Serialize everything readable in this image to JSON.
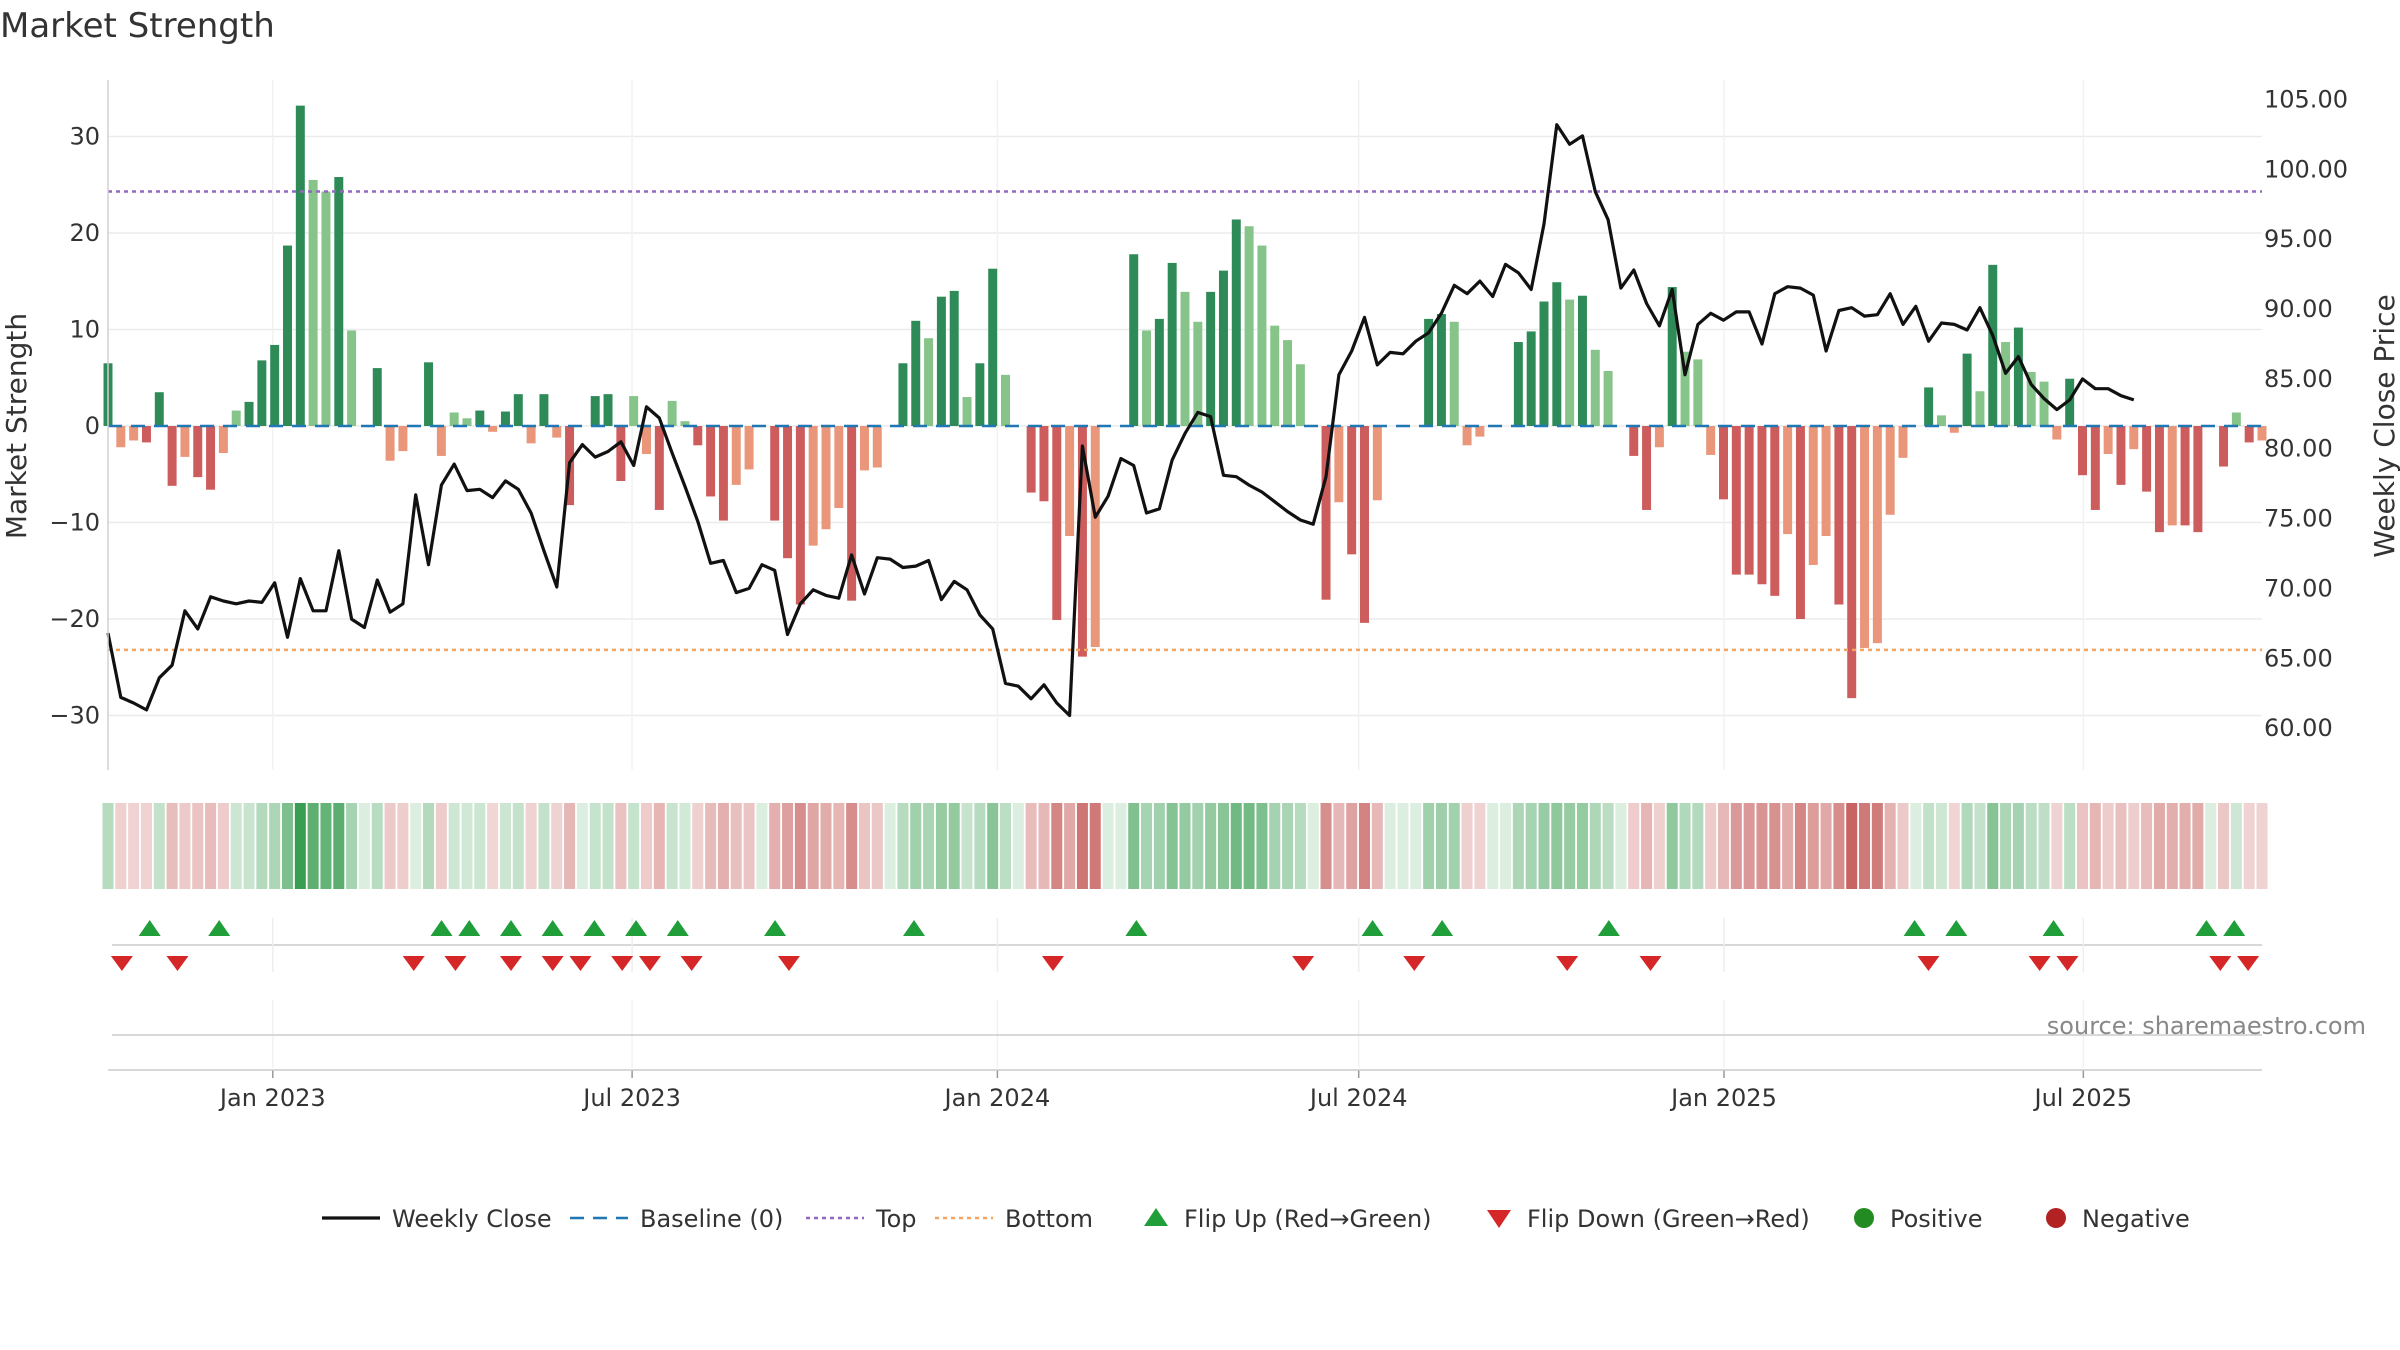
{
  "title": "Market Strength",
  "source": "source: sharemaestro.com",
  "colors": {
    "strong_green": "#2e8b57",
    "light_green": "#86c48a",
    "strong_red": "#cd5c5c",
    "light_red": "#e9967a",
    "baseline": "#1f77b4",
    "top": "#9467bd",
    "bottom": "#f4a460",
    "price": "#111111",
    "flip_up": "#1f9e3a",
    "flip_down": "#d62728",
    "positive": "#228b22",
    "negative": "#b22222"
  },
  "chart_data": {
    "type": "bar",
    "title": "Market Strength",
    "ylabel": "Market Strength",
    "y2label": "Weekly Close Price",
    "ylim": [
      -36,
      36
    ],
    "y2lim": [
      57,
      106.4
    ],
    "yticks": [
      -30,
      -20,
      -10,
      0,
      10,
      20,
      30
    ],
    "yticklabels": [
      "−30",
      "−20",
      "−10",
      "0",
      "10",
      "20",
      "30"
    ],
    "y2ticks": [
      60,
      65,
      70,
      75,
      80,
      85,
      90,
      95,
      100,
      105
    ],
    "y2ticklabels": [
      "60.00",
      "65.00",
      "70.00",
      "75.00",
      "80.00",
      "85.00",
      "90.00",
      "95.00",
      "100.00",
      "105.00"
    ],
    "top_level": 24.3,
    "bottom_level": -23.2,
    "x_start": "2022-10-10",
    "x_end": "2025-09-29",
    "xticks": [
      {
        "date": "2023-01-01",
        "label": "Jan 2023"
      },
      {
        "date": "2023-07-01",
        "label": "Jul 2023"
      },
      {
        "date": "2024-01-01",
        "label": "Jan 2024"
      },
      {
        "date": "2024-07-01",
        "label": "Jul 2024"
      },
      {
        "date": "2025-01-01",
        "label": "Jan 2025"
      },
      {
        "date": "2025-07-01",
        "label": "Jul 2025"
      }
    ],
    "strength": [
      6.5,
      -2.2,
      -1.5,
      -1.7,
      3.5,
      -6.2,
      -3.2,
      -5.3,
      -6.6,
      -2.8,
      1.6,
      2.5,
      6.8,
      8.4,
      18.7,
      33.2,
      25.5,
      24.3,
      25.8,
      9.9,
      0,
      6,
      -3.6,
      -2.6,
      0,
      6.6,
      -3.1,
      1.4,
      0.8,
      1.6,
      -0.6,
      1.5,
      3.3,
      -1.8,
      3.3,
      -1.2,
      -8.2,
      0,
      3.1,
      3.3,
      -5.7,
      3.1,
      -2.9,
      -8.7,
      2.6,
      0.5,
      -2,
      -7.3,
      -9.8,
      -6.1,
      -4.5,
      0,
      -9.8,
      -13.7,
      -18.5,
      -12.4,
      -10.7,
      -8.5,
      -18.1,
      -4.6,
      -4.3,
      0,
      6.5,
      10.9,
      9.1,
      13.4,
      14,
      3,
      6.5,
      16.3,
      5.3,
      0,
      -6.9,
      -7.8,
      -20.1,
      -11.4,
      -23.9,
      -22.9,
      0,
      0,
      17.8,
      9.9,
      11.1,
      16.9,
      13.9,
      10.8,
      13.9,
      16.1,
      21.4,
      20.7,
      18.7,
      10.4,
      8.9,
      6.4,
      0,
      -18,
      -7.9,
      -13.3,
      -20.4,
      -7.7,
      0,
      0,
      0,
      11.1,
      11.6,
      10.8,
      -2,
      -1.1,
      0,
      0,
      8.7,
      9.8,
      12.9,
      14.9,
      13.1,
      13.5,
      7.9,
      5.7,
      0,
      -3.1,
      -8.7,
      -2.2,
      14.4,
      7.7,
      6.9,
      -3,
      -7.6,
      -15.4,
      -15.4,
      -16.4,
      -17.6,
      -11.2,
      -20,
      -14.4,
      -11.4,
      -18.5,
      -28.2,
      -23,
      -22.5,
      -9.2,
      -3.3,
      0,
      4,
      1.1,
      -0.7,
      7.5,
      3.6,
      16.7,
      8.7,
      10.2,
      5.6,
      4.6,
      -1.4,
      4.9,
      -5.1,
      -8.7,
      -2.9,
      -6.1,
      -2.4,
      -6.8,
      -11,
      -10.3,
      -10.3,
      -11,
      0,
      -4.2,
      1.4,
      -1.7,
      -1.5
    ],
    "price": [
      66.8,
      62.2,
      61.8,
      61.3,
      63.6,
      64.5,
      68.4,
      67.1,
      69.4,
      69.1,
      68.9,
      69.1,
      69,
      70.4,
      66.5,
      70.7,
      68.4,
      68.4,
      72.7,
      67.8,
      67.2,
      70.6,
      68.3,
      68.9,
      76.7,
      71.7,
      77.4,
      78.9,
      77,
      77.1,
      76.5,
      77.7,
      77.1,
      75.4,
      72.7,
      70.1,
      79,
      80.3,
      79.4,
      79.8,
      80.5,
      78.8,
      83,
      82.2,
      79.7,
      77.3,
      74.8,
      71.8,
      72,
      69.7,
      70,
      71.7,
      71.3,
      66.7,
      68.9,
      69.9,
      69.5,
      69.3,
      72.4,
      69.6,
      72.2,
      72.1,
      71.5,
      71.6,
      72,
      69.2,
      70.5,
      69.9,
      68.1,
      67.1,
      63.2,
      63,
      62.1,
      63.1,
      61.8,
      60.9,
      80.2,
      75.1,
      76.6,
      79.3,
      78.8,
      75.4,
      75.7,
      79.2,
      81.1,
      82.6,
      82.3,
      78.1,
      78,
      77.4,
      76.9,
      76.2,
      75.5,
      74.9,
      74.6,
      78,
      85.3,
      87,
      89.4,
      86,
      86.9,
      86.8,
      87.7,
      88.3,
      89.7,
      91.7,
      91.1,
      92,
      90.9,
      93.2,
      92.6,
      91.4,
      96.1,
      103.2,
      101.8,
      102.4,
      98.4,
      96.4,
      91.5,
      92.8,
      90.4,
      88.8,
      91.4,
      85.3,
      88.9,
      89.7,
      89.2,
      89.8,
      89.8,
      87.5,
      91.1,
      91.6,
      91.5,
      91,
      87,
      89.9,
      90.1,
      89.5,
      89.6,
      91.1,
      88.9,
      90.2,
      87.7,
      89,
      88.9,
      88.5,
      90.1,
      88.1,
      85.4,
      86.6,
      84.6,
      83.6,
      82.8,
      83.5,
      85,
      84.3,
      84.3,
      83.8,
      83.5
    ],
    "flip_up_dates": [
      "2022-10-31",
      "2022-12-05",
      "2023-03-27",
      "2023-04-10",
      "2023-05-01",
      "2023-05-22",
      "2023-06-12",
      "2023-07-03",
      "2023-07-24",
      "2023-09-11",
      "2023-11-20",
      "2024-03-11",
      "2024-07-08",
      "2024-08-12",
      "2024-11-04",
      "2025-04-07",
      "2025-04-28",
      "2025-06-16",
      "2025-09-01",
      "2025-09-15"
    ],
    "flip_down_dates": [
      "2022-10-17",
      "2022-11-14",
      "2023-03-13",
      "2023-04-03",
      "2023-05-01",
      "2023-05-22",
      "2023-06-05",
      "2023-06-26",
      "2023-07-10",
      "2023-07-31",
      "2023-09-18",
      "2024-01-29",
      "2024-06-03",
      "2024-07-29",
      "2024-10-14",
      "2024-11-25",
      "2025-04-14",
      "2025-06-09",
      "2025-06-23",
      "2025-09-08",
      "2025-09-22"
    ],
    "legend": [
      {
        "label": "Weekly Close",
        "kind": "line"
      },
      {
        "label": "Baseline (0)",
        "kind": "dash"
      },
      {
        "label": "Top",
        "kind": "dot-purple"
      },
      {
        "label": "Bottom",
        "kind": "dot-orange"
      },
      {
        "label": "Flip Up (Red→Green)",
        "kind": "tri-up"
      },
      {
        "label": "Flip Down (Green→Red)",
        "kind": "tri-down"
      },
      {
        "label": "Positive",
        "kind": "dot-green"
      },
      {
        "label": "Negative",
        "kind": "dot-red"
      }
    ],
    "legend_position": "bottom-center",
    "grid": true
  }
}
